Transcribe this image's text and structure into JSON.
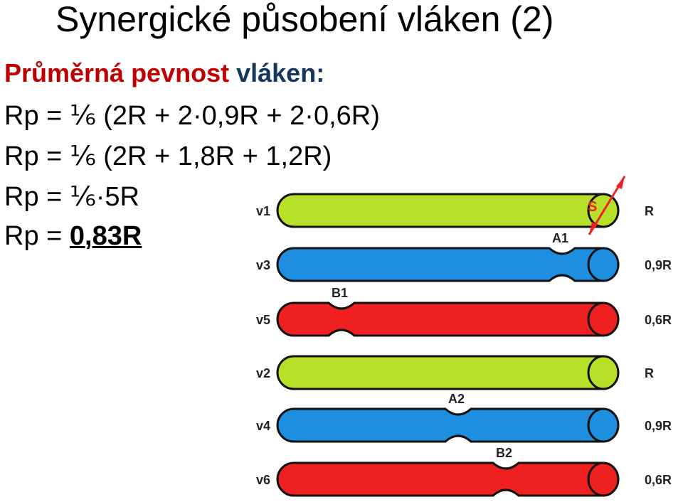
{
  "title": "Synergické působení vláken (2)",
  "subtitle": {
    "part1": "Průměrná pevnost",
    "part2": "vláken:",
    "color1": "#C00000",
    "color2": "#17365D"
  },
  "formulas": [
    "Rp = ⅙ (2R + 2·0,9R + 2·0,6R)",
    "Rp = ⅙ (2R + 1,8R + 1,2R)",
    "Rp = ⅙·5R"
  ],
  "result": {
    "prefix": "Rp = ",
    "value": "0,83R"
  },
  "fibers": [
    {
      "id": "v1",
      "strength": "R",
      "color": "#B7E028",
      "notch": null
    },
    {
      "id": "v3",
      "strength": "0,9R",
      "color": "#1E8FE0",
      "notch": "A1"
    },
    {
      "id": "v5",
      "strength": "0,6R",
      "color": "#EE2020",
      "notch": "B1"
    },
    {
      "id": "v2",
      "strength": "R",
      "color": "#B7E028",
      "notch": null
    },
    {
      "id": "v4",
      "strength": "0,9R",
      "color": "#1E8FE0",
      "notch": "A2"
    },
    {
      "id": "v6",
      "strength": "0,6R",
      "color": "#EE2020",
      "notch": "B2"
    }
  ],
  "section_label": "S",
  "section_color": "#EE2020"
}
